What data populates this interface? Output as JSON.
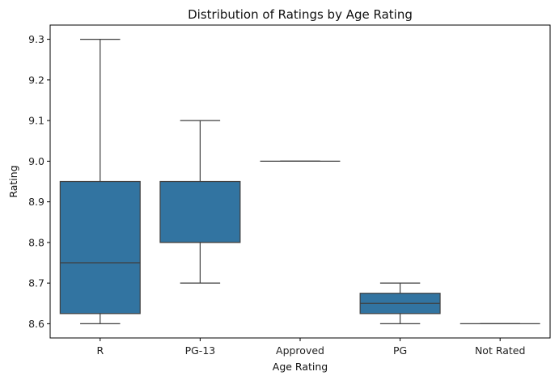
{
  "chart_data": {
    "type": "box",
    "title": "Distribution of Ratings by Age Rating",
    "xlabel": "Age Rating",
    "ylabel": "Rating",
    "ylim": [
      8.565,
      9.335
    ],
    "yticks": [
      "8.6",
      "8.7",
      "8.8",
      "8.9",
      "9.0",
      "9.1",
      "9.2",
      "9.3"
    ],
    "grid": false,
    "categories": [
      "R",
      "PG-13",
      "Approved",
      "PG",
      "Not Rated"
    ],
    "boxes": [
      {
        "category": "R",
        "whisker_low": 8.6,
        "q1": 8.625,
        "median": 8.75,
        "q3": 8.95,
        "whisker_high": 9.3
      },
      {
        "category": "PG-13",
        "whisker_low": 8.7,
        "q1": 8.8,
        "median": 8.8,
        "q3": 8.95,
        "whisker_high": 9.1
      },
      {
        "category": "Approved",
        "whisker_low": 9.0,
        "q1": 9.0,
        "median": 9.0,
        "q3": 9.0,
        "whisker_high": 9.0
      },
      {
        "category": "PG",
        "whisker_low": 8.6,
        "q1": 8.625,
        "median": 8.65,
        "q3": 8.675,
        "whisker_high": 8.7
      },
      {
        "category": "Not Rated",
        "whisker_low": 8.6,
        "q1": 8.6,
        "median": 8.6,
        "q3": 8.6,
        "whisker_high": 8.6
      }
    ],
    "colors": {
      "box_fill": "#3274a1",
      "line": "#3f3f3f"
    }
  }
}
